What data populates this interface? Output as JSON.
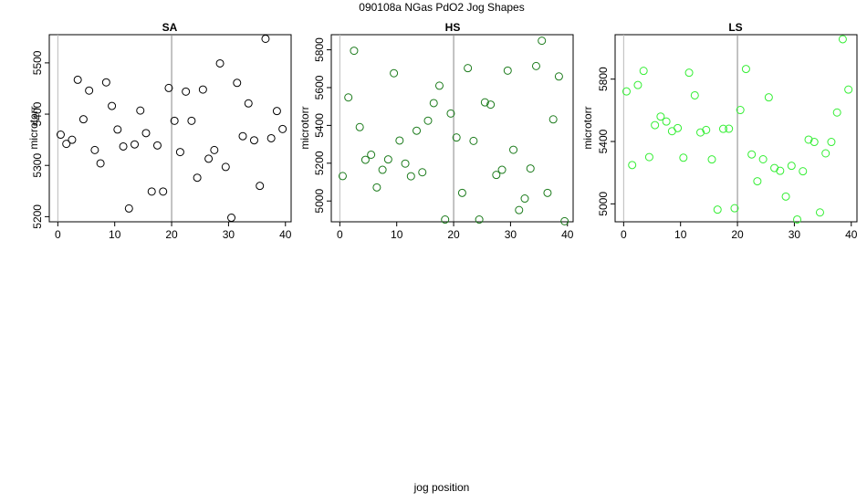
{
  "figure": {
    "title": "090108a   NGas PdO2 Jog Shapes",
    "xlabel": "jog position"
  },
  "chart_data": [
    {
      "type": "scatter",
      "title": "SA",
      "ylabel": "microtorr",
      "xlim": [
        -1.5,
        41
      ],
      "ylim": [
        5190,
        5555
      ],
      "xticks": [
        0,
        10,
        20,
        30,
        40
      ],
      "yticks": [
        5200,
        5300,
        5400,
        5500
      ],
      "vline": 20,
      "marker_color": "#000000",
      "x": [
        0.5,
        1.5,
        2.5,
        3.5,
        4.5,
        5.5,
        6.5,
        7.5,
        8.5,
        9.5,
        10.5,
        11.5,
        12.5,
        13.5,
        14.5,
        15.5,
        16.5,
        17.5,
        18.5,
        19.5,
        20.5,
        21.5,
        22.5,
        23.5,
        24.5,
        25.5,
        26.5,
        27.5,
        28.5,
        29.5,
        30.5,
        31.5,
        32.5,
        33.5,
        34.5,
        35.5,
        36.5,
        37.5,
        38.5,
        39.5
      ],
      "y": [
        5360,
        5342,
        5350,
        5467,
        5390,
        5446,
        5330,
        5304,
        5462,
        5416,
        5370,
        5337,
        5216,
        5341,
        5407,
        5363,
        5249,
        5339,
        5249,
        5451,
        5387,
        5326,
        5444,
        5387,
        5276,
        5448,
        5313,
        5330,
        5499,
        5297,
        5198,
        5461,
        5357,
        5421,
        5349,
        5260,
        5547,
        5353,
        5406,
        5371
      ]
    },
    {
      "type": "scatter",
      "title": "HS",
      "ylabel": "microtorr",
      "xlim": [
        -1.5,
        41
      ],
      "ylim": [
        4890,
        5880
      ],
      "xticks": [
        0,
        10,
        20,
        30,
        40
      ],
      "yticks": [
        5000,
        5200,
        5400,
        5600,
        5800
      ],
      "vline": 20,
      "marker_color": "#1a7a1a",
      "x": [
        0.5,
        1.5,
        2.5,
        3.5,
        4.5,
        5.5,
        6.5,
        7.5,
        8.5,
        9.5,
        10.5,
        11.5,
        12.5,
        13.5,
        14.5,
        15.5,
        16.5,
        17.5,
        18.5,
        19.5,
        20.5,
        21.5,
        22.5,
        23.5,
        24.5,
        25.5,
        26.5,
        27.5,
        28.5,
        29.5,
        30.5,
        31.5,
        32.5,
        33.5,
        34.5,
        35.5,
        36.5,
        37.5,
        38.5,
        39.5
      ],
      "y": [
        5132,
        5548,
        5795,
        5391,
        5218,
        5245,
        5072,
        5165,
        5220,
        5676,
        5320,
        5198,
        5131,
        5372,
        5152,
        5425,
        5518,
        5610,
        4902,
        5463,
        5336,
        5043,
        5703,
        5318,
        4902,
        5522,
        5510,
        5138,
        5165,
        5690,
        5271,
        4952,
        5013,
        5172,
        5714,
        5848,
        5043,
        5432,
        5659,
        4893
      ]
    },
    {
      "type": "scatter",
      "title": "LS",
      "ylabel": "microtorr",
      "xlim": [
        -1.5,
        41
      ],
      "ylim": [
        4885,
        6085
      ],
      "xticks": [
        0,
        10,
        20,
        30,
        40
      ],
      "yticks": [
        5000,
        5400,
        5800
      ],
      "vline": 20,
      "marker_color": "#33ee33",
      "x": [
        0.5,
        1.5,
        2.5,
        3.5,
        4.5,
        5.5,
        6.5,
        7.5,
        8.5,
        9.5,
        10.5,
        11.5,
        12.5,
        13.5,
        14.5,
        15.5,
        16.5,
        17.5,
        18.5,
        19.5,
        20.5,
        21.5,
        22.5,
        23.5,
        24.5,
        25.5,
        26.5,
        27.5,
        28.5,
        29.5,
        30.5,
        31.5,
        32.5,
        33.5,
        34.5,
        35.5,
        36.5,
        37.5,
        38.5,
        39.5
      ],
      "y": [
        5721,
        5249,
        5762,
        5853,
        5300,
        5505,
        5560,
        5528,
        5466,
        5486,
        5296,
        5841,
        5696,
        5458,
        5474,
        5285,
        4963,
        5481,
        5482,
        4972,
        5602,
        5865,
        5317,
        5145,
        5286,
        5683,
        5230,
        5212,
        5047,
        5244,
        4900,
        5209,
        5412,
        5397,
        4945,
        5324,
        5397,
        5586,
        6056,
        5733
      ]
    }
  ]
}
